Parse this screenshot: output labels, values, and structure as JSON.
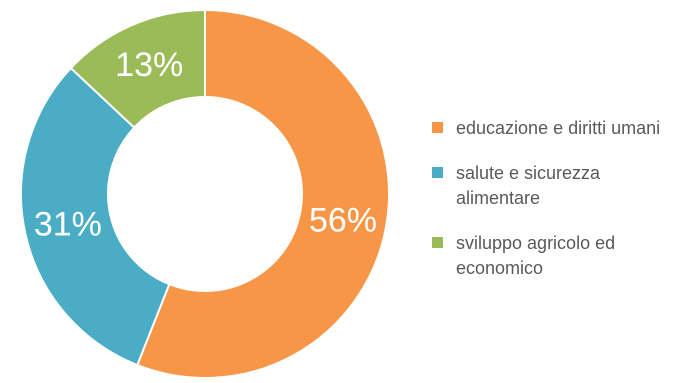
{
  "chart_data": {
    "type": "pie",
    "style": "donut",
    "title": "",
    "categories": [
      "educazione e diritti umani",
      "salute e sicurezza alimentare",
      "sviluppo agricolo ed economico"
    ],
    "values": [
      56,
      31,
      13
    ],
    "data_labels": [
      "56%",
      "31%",
      "13%"
    ],
    "colors": [
      "#f79646",
      "#4bacc6",
      "#9bbb59"
    ],
    "legend": {
      "position": "right",
      "items": [
        {
          "label": "educazione e diritti umani",
          "color": "#f79646"
        },
        {
          "label": "salute e sicurezza alimentare",
          "color": "#4bacc6"
        },
        {
          "label": "sviluppo agricolo ed economico",
          "color": "#9bbb59"
        }
      ]
    }
  }
}
